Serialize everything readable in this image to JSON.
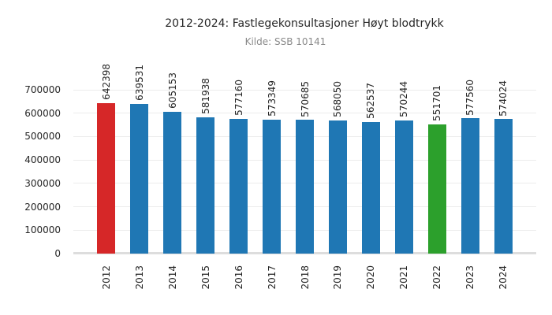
{
  "chart_data": {
    "type": "bar",
    "title": "2012-2024: Fastlegekonsultasjoner Høyt blodtrykk",
    "subtitle": "Kilde: SSB 10141",
    "categories": [
      "2012",
      "2013",
      "2014",
      "2015",
      "2016",
      "2017",
      "2018",
      "2019",
      "2020",
      "2021",
      "2022",
      "2023",
      "2024"
    ],
    "values": [
      642398,
      639531,
      605153,
      581938,
      577160,
      573349,
      570685,
      568050,
      562537,
      570244,
      551701,
      577560,
      574024
    ],
    "bar_colors": [
      "#d62728",
      "#1f77b4",
      "#1f77b4",
      "#1f77b4",
      "#1f77b4",
      "#1f77b4",
      "#1f77b4",
      "#1f77b4",
      "#1f77b4",
      "#1f77b4",
      "#2ca02c",
      "#1f77b4",
      "#1f77b4"
    ],
    "value_labels_shown": true,
    "label_rotation_degrees": 90,
    "xlabel": "",
    "ylabel": "",
    "ylim": [
      0,
      700000
    ],
    "yticks": [
      0,
      100000,
      200000,
      300000,
      400000,
      500000,
      600000,
      700000
    ],
    "grid": "horizontal",
    "legend": "none",
    "colors": {
      "bar_default": "#1f77b4",
      "bar_highlight_2012": "#d62728",
      "bar_highlight_2022": "#2ca02c",
      "gridline": "#ececec",
      "baseline": "#dddddd",
      "title_text": "#262626",
      "subtitle_text": "#8a8a8a",
      "tick_text": "#262626",
      "background": "#ffffff"
    }
  }
}
